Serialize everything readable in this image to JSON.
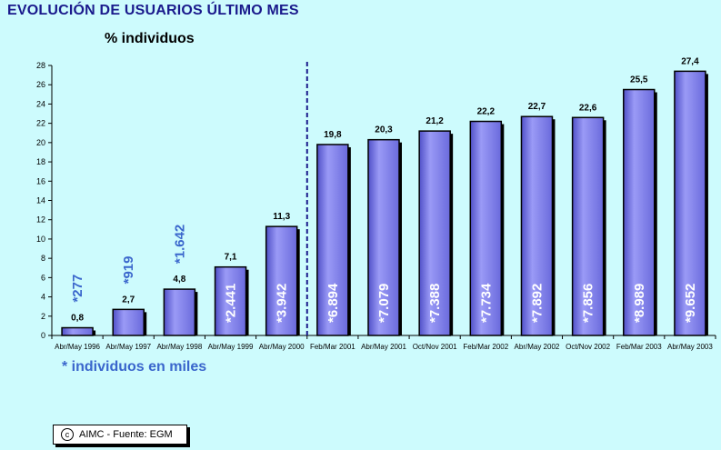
{
  "title": "EVOLUCIÓN DE USUARIOS ÚLTIMO MES",
  "ylabel": "% individuos",
  "footnote": "* individuos en miles",
  "credit": {
    "icon": "copyright-icon",
    "text": "AIMC - Fuente: EGM"
  },
  "colors": {
    "bar": "#8080ee",
    "bar_edge": "#000000",
    "inner_label": "#ffffff",
    "outer_label": "#3a66cc",
    "divider": "#1a1a8c"
  },
  "chart_data": {
    "type": "bar",
    "categories": [
      "Abr/May 1996",
      "Abr/May 1997",
      "Abr/May 1998",
      "Abr/May 1999",
      "Abr/May 2000",
      "Feb/Mar 2001",
      "Abr/May 2001",
      "Oct/Nov 2001",
      "Feb/Mar 2002",
      "Abr/May 2002",
      "Oct/Nov 2002",
      "Feb/Mar 2003",
      "Abr/May 2003"
    ],
    "values": [
      0.8,
      2.7,
      4.8,
      7.1,
      11.3,
      19.8,
      20.3,
      21.2,
      22.2,
      22.7,
      22.6,
      25.5,
      27.4
    ],
    "value_labels": [
      "0,8",
      "2,7",
      "4,8",
      "7,1",
      "11,3",
      "19,8",
      "20,3",
      "21,2",
      "22,2",
      "22,7",
      "22,6",
      "25,5",
      "27,4"
    ],
    "thousands_labels": [
      "*277",
      "*919",
      "*1.642",
      "*2.441",
      "*3.942",
      "*6.894",
      "*7.079",
      "*7.388",
      "*7.734",
      "*7.892",
      "*7.856",
      "*8.989",
      "*9.652"
    ],
    "yticks": [
      "0",
      "2",
      "4",
      "6",
      "8",
      "10",
      "12",
      "14",
      "16",
      "18",
      "20",
      "22",
      "24",
      "26",
      "28"
    ],
    "ylim": [
      0,
      28
    ],
    "divider_after_index": 4,
    "grid": false,
    "legend": "none"
  }
}
